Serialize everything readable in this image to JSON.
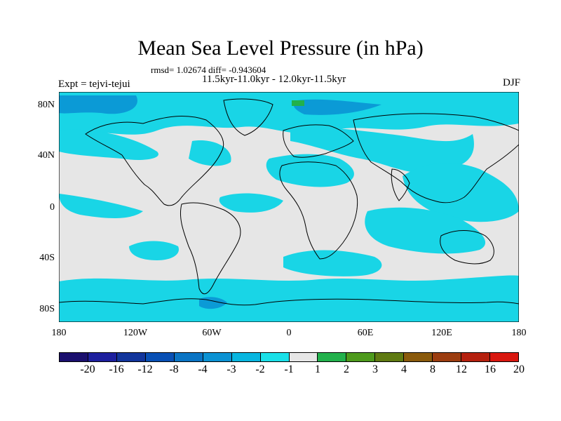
{
  "title": "Mean Sea Level Pressure (in hPa)",
  "stats": "rmsd= 1.02674 diff= -0.943604",
  "periods": "11.5kyr-11.0kyr - 12.0kyr-11.5kyr",
  "experiment": "Expt = tejvi-tejui",
  "season": "DJF",
  "axes": {
    "y_labels": [
      "80N",
      "40N",
      "0",
      "40S",
      "80S"
    ],
    "x_labels": [
      "180",
      "120W",
      "60W",
      "0",
      "60E",
      "120E",
      "180"
    ]
  },
  "colorbar": {
    "colors": [
      "#1a0f6e",
      "#1d1f9e",
      "#12359c",
      "#0850b5",
      "#0a74c4",
      "#0b92d3",
      "#08b6e0",
      "#1ae0e8",
      "#e6e6e6",
      "#22b14c",
      "#4d9a1c",
      "#5f7a12",
      "#8a5a0c",
      "#9c3d10",
      "#b5200e",
      "#d9170f"
    ],
    "labels": [
      "-20",
      "-16",
      "-12",
      "-8",
      "-4",
      "-3",
      "-2",
      "-1",
      "1",
      "2",
      "3",
      "4",
      "8",
      "12",
      "16",
      "20"
    ]
  },
  "map_colors": {
    "neutral": "#e6e6e6",
    "light_blue": "#19d5e6",
    "mid_blue": "#0b9ad6",
    "dark_blue": "#0866b6",
    "green": "#22b14c",
    "coast": "#000000"
  }
}
